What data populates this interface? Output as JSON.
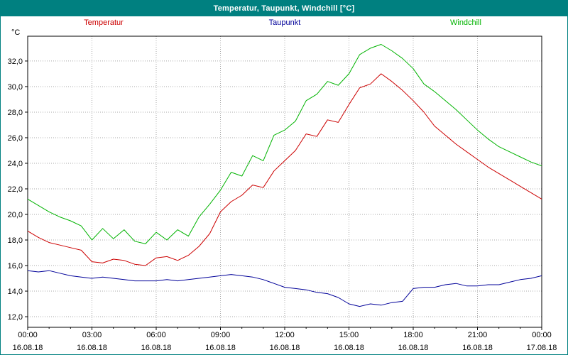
{
  "window": {
    "title": "Temperatur, Taupunkt, Windchill [°C]"
  },
  "chart_data": {
    "type": "line",
    "title": "Temperatur, Taupunkt, Windchill [°C]",
    "y_axis_unit": "°C",
    "x_range": [
      0,
      24
    ],
    "y_range": [
      11.17,
      33.94
    ],
    "grid": "dotted",
    "grid_color": "#a8a8a8",
    "axis_color": "#000000",
    "legend_position": "top",
    "y_ticks": [
      12,
      14,
      16,
      18,
      20,
      22,
      24,
      26,
      28,
      30,
      32
    ],
    "y_tick_labels": [
      "12,0",
      "14,0",
      "16,0",
      "18,0",
      "20,0",
      "22,0",
      "24,0",
      "26,0",
      "28,0",
      "30,0",
      "32,0"
    ],
    "x_ticks": [
      0,
      3,
      6,
      9,
      12,
      15,
      18,
      21,
      24
    ],
    "x_tick_labels": [
      "00:00",
      "03:00",
      "06:00",
      "09:00",
      "12:00",
      "15:00",
      "18:00",
      "21:00",
      "00:00"
    ],
    "x_tick_dates": [
      "16.08.18",
      "16.08.18",
      "16.08.18",
      "16.08.18",
      "16.08.18",
      "16.08.18",
      "16.08.18",
      "16.08.18",
      "17.08.18"
    ],
    "x": [
      0,
      0.5,
      1,
      1.5,
      2,
      2.5,
      3,
      3.5,
      4,
      4.5,
      5,
      5.5,
      6,
      6.5,
      7,
      7.5,
      8,
      8.5,
      9,
      9.5,
      10,
      10.5,
      11,
      11.5,
      12,
      12.5,
      13,
      13.5,
      14,
      14.5,
      15,
      15.5,
      16,
      16.5,
      17,
      17.5,
      18,
      18.5,
      19,
      19.5,
      20,
      20.5,
      21,
      21.5,
      22,
      22.5,
      23,
      23.5,
      24
    ],
    "series": [
      {
        "name": "Temperatur",
        "color": "#cc0000",
        "values": [
          18.7,
          18.2,
          17.8,
          17.6,
          17.4,
          17.2,
          16.3,
          16.2,
          16.5,
          16.4,
          16.1,
          16.0,
          16.6,
          16.7,
          16.4,
          16.8,
          17.5,
          18.5,
          20.2,
          21.0,
          21.5,
          22.3,
          22.1,
          23.4,
          24.2,
          25.0,
          26.3,
          26.1,
          27.4,
          27.2,
          28.6,
          29.9,
          30.2,
          31.0,
          30.4,
          29.7,
          28.9,
          28.0,
          26.9,
          26.2,
          25.5,
          24.9,
          24.3,
          23.7,
          23.2,
          22.7,
          22.2,
          21.7,
          21.2
        ]
      },
      {
        "name": "Taupunkt",
        "color": "#000099",
        "values": [
          15.6,
          15.5,
          15.6,
          15.4,
          15.2,
          15.1,
          15.0,
          15.1,
          15.0,
          14.9,
          14.8,
          14.8,
          14.8,
          14.9,
          14.8,
          14.9,
          15.0,
          15.1,
          15.2,
          15.3,
          15.2,
          15.1,
          14.9,
          14.6,
          14.3,
          14.2,
          14.1,
          13.9,
          13.8,
          13.5,
          13.0,
          12.8,
          13.0,
          12.9,
          13.1,
          13.2,
          14.2,
          14.3,
          14.3,
          14.5,
          14.6,
          14.4,
          14.4,
          14.5,
          14.5,
          14.7,
          14.9,
          15.0,
          15.2
        ]
      },
      {
        "name": "Windchill",
        "color": "#00b300",
        "values": [
          21.2,
          20.7,
          20.2,
          19.8,
          19.5,
          19.1,
          18.0,
          18.9,
          18.1,
          18.8,
          17.9,
          17.7,
          18.6,
          18.0,
          18.8,
          18.3,
          19.8,
          20.8,
          21.9,
          23.3,
          23.0,
          24.6,
          24.2,
          26.2,
          26.6,
          27.3,
          28.9,
          29.4,
          30.4,
          30.1,
          31.0,
          32.5,
          33.0,
          33.3,
          32.8,
          32.2,
          31.4,
          30.2,
          29.6,
          28.9,
          28.2,
          27.4,
          26.6,
          25.9,
          25.3,
          24.9,
          24.5,
          24.1,
          23.8
        ]
      }
    ]
  }
}
